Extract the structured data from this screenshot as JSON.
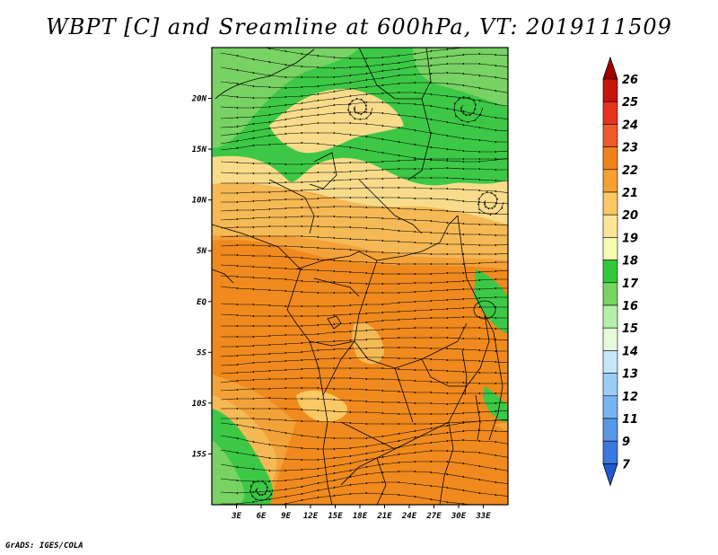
{
  "title": "WBPT [C] and Sreamline at 600hPa, VT: 2019111509",
  "credit": "GrADS: IGES/COLA",
  "map": {
    "field": "Wet-bulb potential temperature (C) with streamlines, 600 hPa",
    "lon_range": [
      0,
      36
    ],
    "lat_range": [
      -20,
      25
    ],
    "lon_ticks": [
      "3E",
      "6E",
      "9E",
      "12E",
      "15E",
      "18E",
      "21E",
      "24E",
      "27E",
      "30E",
      "33E"
    ],
    "lat_ticks": [
      "20N",
      "15N",
      "10N",
      "5N",
      "EQ",
      "5S",
      "10S",
      "15S"
    ],
    "lon_tick_values": [
      3,
      6,
      9,
      12,
      15,
      18,
      21,
      24,
      27,
      30,
      33
    ],
    "lat_tick_values": [
      20,
      15,
      10,
      5,
      0,
      -5,
      -10,
      -15
    ]
  },
  "colorbar": {
    "labels": [
      "26",
      "25",
      "24",
      "23",
      "22",
      "21",
      "20",
      "19",
      "18",
      "17",
      "16",
      "15",
      "14",
      "13",
      "12",
      "11",
      "9",
      "7"
    ],
    "colors": [
      "#a00000",
      "#c8140f",
      "#e6321e",
      "#f05a28",
      "#f0821e",
      "#f5a032",
      "#fac864",
      "#fae696",
      "#f5fab4",
      "#32c83c",
      "#78d264",
      "#b4f0aa",
      "#e6fadc",
      "#c8e6fa",
      "#9ccdf5",
      "#78b4f0",
      "#5a96e6",
      "#3c78dc",
      "#1e5ad2"
    ],
    "top_arrow_color": "#a00000",
    "bottom_arrow_color": "#1e5ad2"
  }
}
